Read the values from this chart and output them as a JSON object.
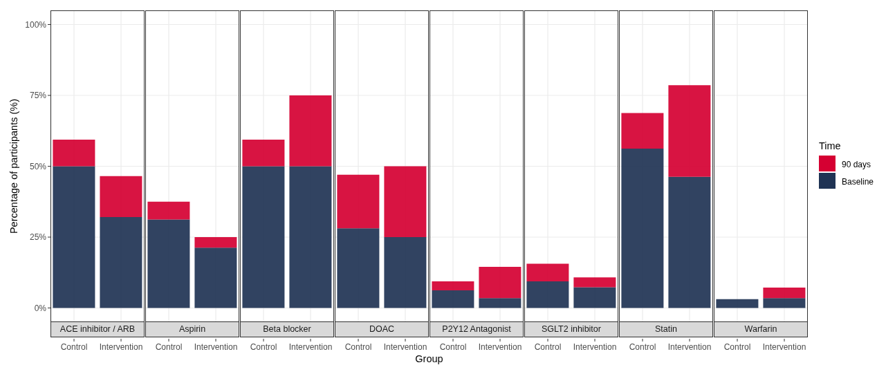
{
  "chart_data": [
    {
      "type": "bar",
      "title": "ACE inhibitor / ARB",
      "ylabel": "Percentage of participants (%)",
      "categories": [
        "Control",
        "Intervention"
      ],
      "stacked": true,
      "grid": true,
      "ylim": [
        -5,
        105
      ],
      "yticks": [
        {
          "value": 0,
          "label": "0%"
        },
        {
          "value": 25,
          "label": "25%"
        },
        {
          "value": 50,
          "label": "50%"
        },
        {
          "value": 75,
          "label": "75%"
        },
        {
          "value": 100,
          "label": "100%"
        }
      ],
      "series": [
        {
          "color": "#1f3354",
          "values": [
            50,
            32.1
          ]
        },
        {
          "color": "#d50032",
          "values": [
            9.4,
            14.4
          ]
        }
      ]
    },
    {
      "type": "bar",
      "title": "Aspirin",
      "categories": [
        "Control",
        "Intervention"
      ],
      "stacked": true,
      "grid": true,
      "tick_labels": "x",
      "ylim": [
        -5,
        105
      ],
      "yticks": [
        0,
        25,
        50,
        75,
        100
      ],
      "series": [
        {
          "color": "#1f3354",
          "values": [
            31.2,
            21.3
          ]
        },
        {
          "color": "#d50032",
          "values": [
            6.3,
            3.7
          ]
        }
      ]
    },
    {
      "type": "bar",
      "title": "Beta blocker",
      "categories": [
        "Control",
        "Intervention"
      ],
      "stacked": true,
      "grid": true,
      "tick_labels": "x",
      "ylim": [
        -5,
        105
      ],
      "yticks": [
        0,
        25,
        50,
        75,
        100
      ],
      "series": [
        {
          "color": "#1f3354",
          "values": [
            50,
            50
          ]
        },
        {
          "color": "#d50032",
          "values": [
            9.4,
            25
          ]
        }
      ]
    },
    {
      "type": "bar",
      "title": "DOAC",
      "xlabel": "Group",
      "categories": [
        "Control",
        "Intervention"
      ],
      "stacked": true,
      "grid": true,
      "tick_labels": "x",
      "ylim": [
        -5,
        105
      ],
      "yticks": [
        0,
        25,
        50,
        75,
        100
      ],
      "series": [
        {
          "color": "#1f3354",
          "values": [
            28.1,
            25
          ]
        },
        {
          "color": "#d50032",
          "values": [
            18.9,
            25
          ]
        }
      ]
    },
    {
      "type": "bar",
      "title": "P2Y12 Antagonist",
      "categories": [
        "Control",
        "Intervention"
      ],
      "stacked": true,
      "grid": true,
      "tick_labels": "x",
      "ylim": [
        -5,
        105
      ],
      "yticks": [
        0,
        25,
        50,
        75,
        100
      ],
      "series": [
        {
          "color": "#1f3354",
          "values": [
            6.2,
            3.5
          ]
        },
        {
          "color": "#d50032",
          "values": [
            3.2,
            11
          ]
        }
      ]
    },
    {
      "type": "bar",
      "title": "SGLT2 inhibitor",
      "categories": [
        "Control",
        "Intervention"
      ],
      "stacked": true,
      "grid": true,
      "tick_labels": "x",
      "ylim": [
        -5,
        105
      ],
      "yticks": [
        0,
        25,
        50,
        75,
        100
      ],
      "series": [
        {
          "color": "#1f3354",
          "values": [
            9.4,
            7.3
          ]
        },
        {
          "color": "#d50032",
          "values": [
            6.2,
            3.5
          ]
        }
      ]
    },
    {
      "type": "bar",
      "title": "Statin",
      "categories": [
        "Control",
        "Intervention"
      ],
      "stacked": true,
      "grid": true,
      "tick_labels": "x",
      "ylim": [
        -5,
        105
      ],
      "yticks": [
        0,
        25,
        50,
        75,
        100
      ],
      "series": [
        {
          "color": "#1f3354",
          "values": [
            56.2,
            46.3
          ]
        },
        {
          "color": "#d50032",
          "values": [
            12.6,
            32.3
          ]
        }
      ]
    },
    {
      "type": "bar",
      "title": "Warfarin",
      "legend": "right",
      "legend_title": "Time",
      "categories": [
        "Control",
        "Intervention"
      ],
      "stacked": true,
      "grid": true,
      "tick_labels": "x",
      "ylim": [
        -5,
        105
      ],
      "yticks": [
        0,
        25,
        50,
        75,
        100
      ],
      "series": [
        {
          "name": "Baseline",
          "color": "#1f3354",
          "values": [
            3.1,
            3.5
          ]
        },
        {
          "name": "90 days",
          "color": "#d50032",
          "values": [
            0,
            3.7
          ]
        }
      ]
    }
  ]
}
